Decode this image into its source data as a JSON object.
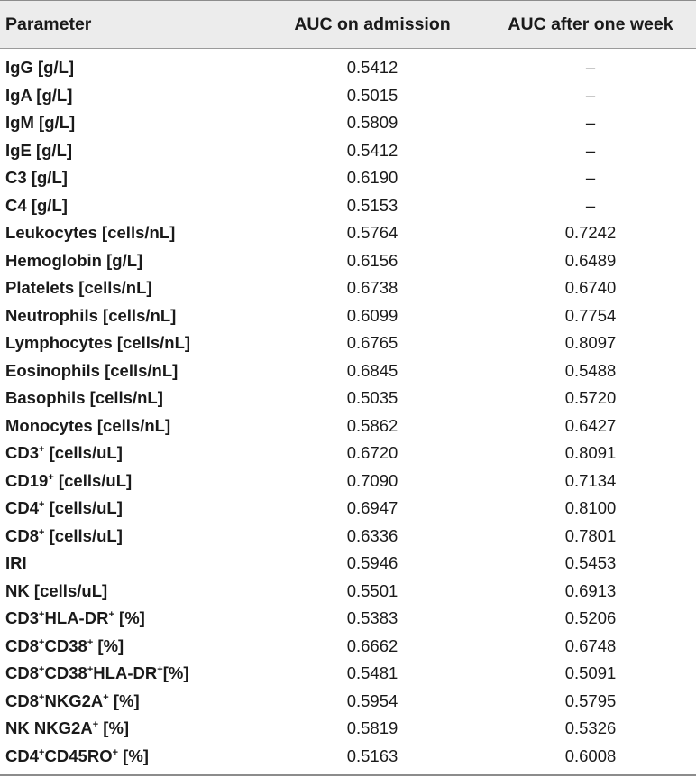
{
  "table": {
    "headers": {
      "parameter": "Parameter",
      "admission": "AUC on admission",
      "week": "AUC after one week"
    },
    "rows": [
      {
        "name": "IgG [g/L]",
        "admission": "0.5412",
        "week": "–"
      },
      {
        "name": "IgA [g/L]",
        "admission": "0.5015",
        "week": "–"
      },
      {
        "name": "IgM [g/L]",
        "admission": "0.5809",
        "week": "–"
      },
      {
        "name": "IgE [g/L]",
        "admission": "0.5412",
        "week": "–"
      },
      {
        "name": "C3 [g/L]",
        "admission": "0.6190",
        "week": "–"
      },
      {
        "name": "C4 [g/L]",
        "admission": "0.5153",
        "week": "–"
      },
      {
        "name": "Leukocytes [cells/nL]",
        "admission": "0.5764",
        "week": "0.7242"
      },
      {
        "name": "Hemoglobin [g/L]",
        "admission": "0.6156",
        "week": "0.6489"
      },
      {
        "name": "Platelets [cells/nL]",
        "admission": "0.6738",
        "week": "0.6740"
      },
      {
        "name": "Neutrophils [cells/nL]",
        "admission": "0.6099",
        "week": "0.7754"
      },
      {
        "name": "Lymphocytes [cells/nL]",
        "admission": "0.6765",
        "week": "0.8097"
      },
      {
        "name": "Eosinophils [cells/nL]",
        "admission": "0.6845",
        "week": "0.5488"
      },
      {
        "name": "Basophils [cells/nL]",
        "admission": "0.5035",
        "week": "0.5720"
      },
      {
        "name": "Monocytes [cells/nL]",
        "admission": "0.5862",
        "week": "0.6427"
      },
      {
        "name": "CD3⁺ [cells/uL]",
        "admission": "0.6720",
        "week": "0.8091"
      },
      {
        "name": "CD19⁺ [cells/uL]",
        "admission": "0.7090",
        "week": "0.7134"
      },
      {
        "name": "CD4⁺ [cells/uL]",
        "admission": "0.6947",
        "week": "0.8100"
      },
      {
        "name": "CD8⁺ [cells/uL]",
        "admission": "0.6336",
        "week": "0.7801"
      },
      {
        "name": "IRI",
        "admission": "0.5946",
        "week": "0.5453"
      },
      {
        "name": "NK [cells/uL]",
        "admission": "0.5501",
        "week": "0.6913"
      },
      {
        "name": "CD3⁺HLA-DR⁺ [%]",
        "admission": "0.5383",
        "week": "0.5206"
      },
      {
        "name": "CD8⁺CD38⁺ [%]",
        "admission": "0.6662",
        "week": "0.6748"
      },
      {
        "name": "CD8⁺CD38⁺HLA-DR⁺[%]",
        "admission": "0.5481",
        "week": "0.5091"
      },
      {
        "name": "CD8⁺NKG2A⁺ [%]",
        "admission": "0.5954",
        "week": "0.5795"
      },
      {
        "name": "NK NKG2A⁺ [%]",
        "admission": "0.5819",
        "week": "0.5326"
      },
      {
        "name": "CD4⁺CD45RO⁺ [%]",
        "admission": "0.5163",
        "week": "0.6008"
      }
    ]
  }
}
